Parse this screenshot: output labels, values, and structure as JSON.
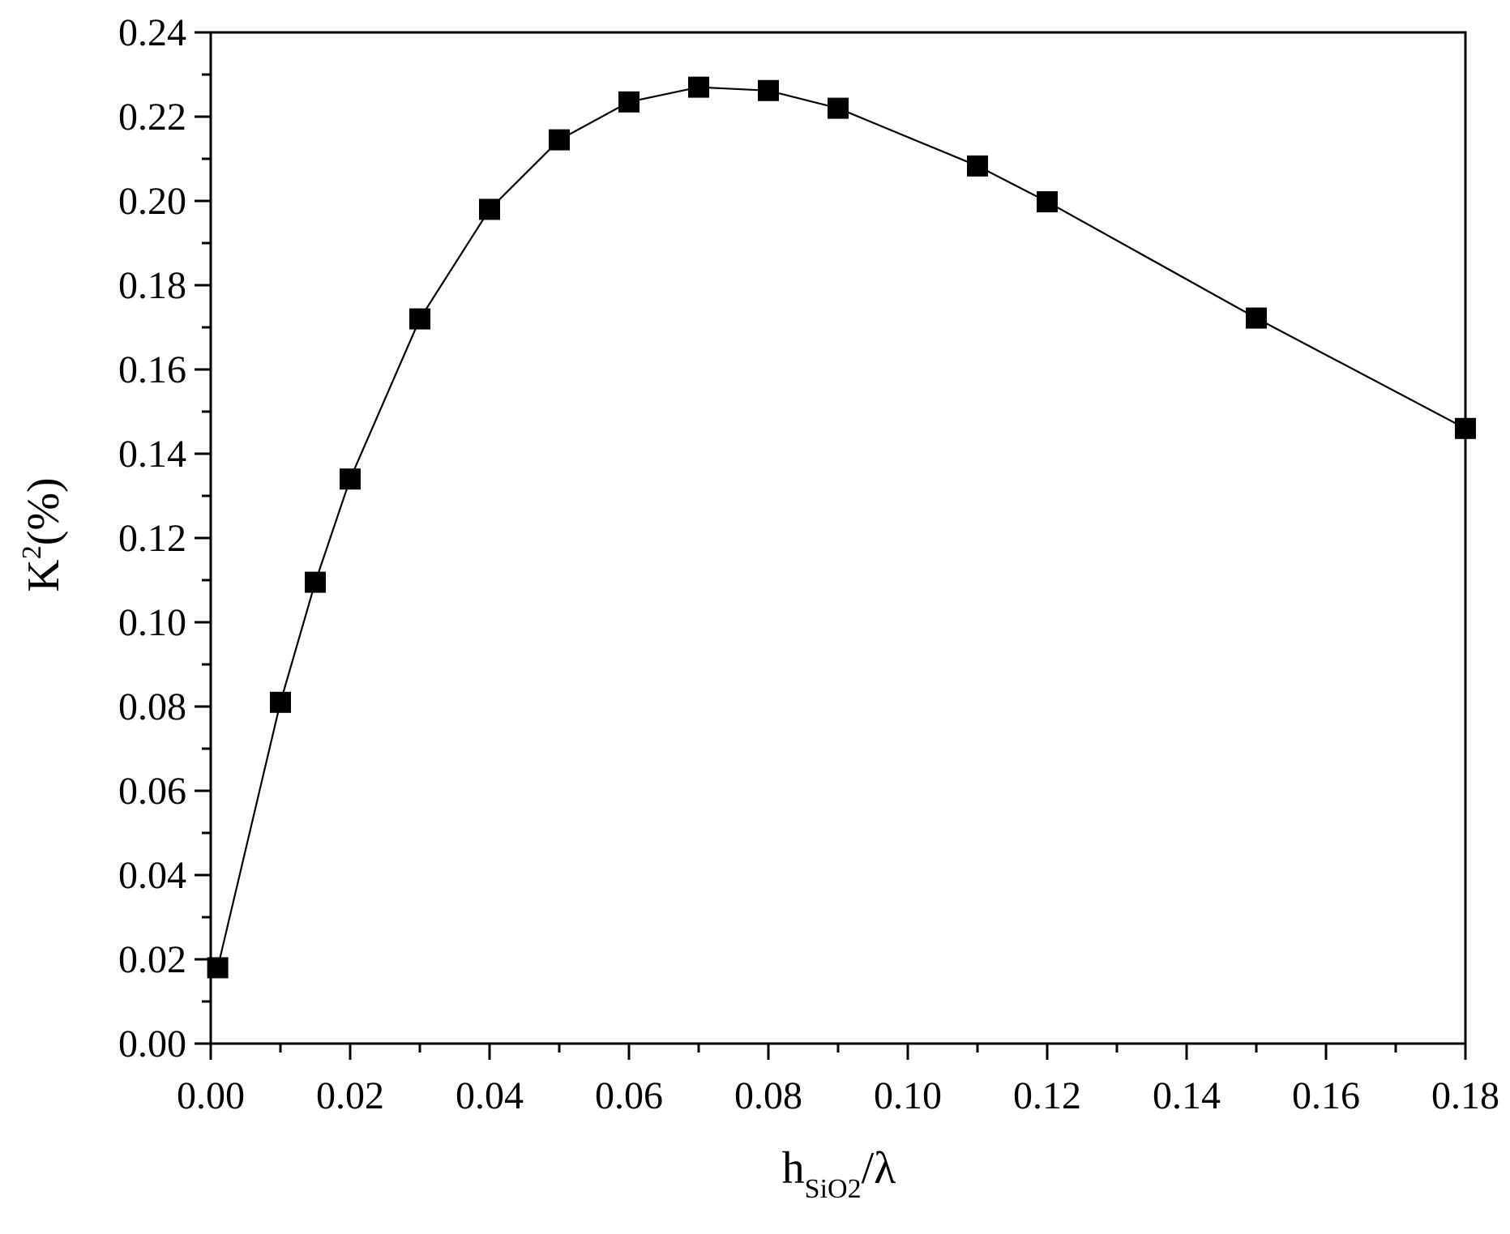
{
  "chart_data": {
    "type": "line",
    "title": "",
    "xlabel": {
      "main": "h",
      "sub": "SiO2",
      "suffix": "/λ"
    },
    "ylabel": {
      "main": "K",
      "sup": "2",
      "suffix": "(%)"
    },
    "xlim": [
      0,
      0.18
    ],
    "ylim": [
      0,
      0.24
    ],
    "x_ticks": [
      "0.00",
      "0.02",
      "0.04",
      "0.06",
      "0.08",
      "0.10",
      "0.12",
      "0.14",
      "0.16",
      "0.18"
    ],
    "y_ticks": [
      "0.00",
      "0.02",
      "0.04",
      "0.06",
      "0.08",
      "0.10",
      "0.12",
      "0.14",
      "0.16",
      "0.18",
      "0.20",
      "0.22",
      "0.24"
    ],
    "grid": false,
    "legend": "none",
    "marker": "square",
    "series": [
      {
        "x": [
          0.001,
          0.01,
          0.015,
          0.02,
          0.03,
          0.04,
          0.05,
          0.06,
          0.07,
          0.08,
          0.09,
          0.11,
          0.12,
          0.15,
          0.18
        ],
        "y": [
          0.018,
          0.081,
          0.1095,
          0.134,
          0.172,
          0.198,
          0.2145,
          0.2235,
          0.227,
          0.2262,
          0.222,
          0.2083,
          0.1998,
          0.1722,
          0.146
        ]
      }
    ],
    "colors": {
      "line": "#000000",
      "marker": "#000000",
      "axis": "#000000"
    }
  }
}
